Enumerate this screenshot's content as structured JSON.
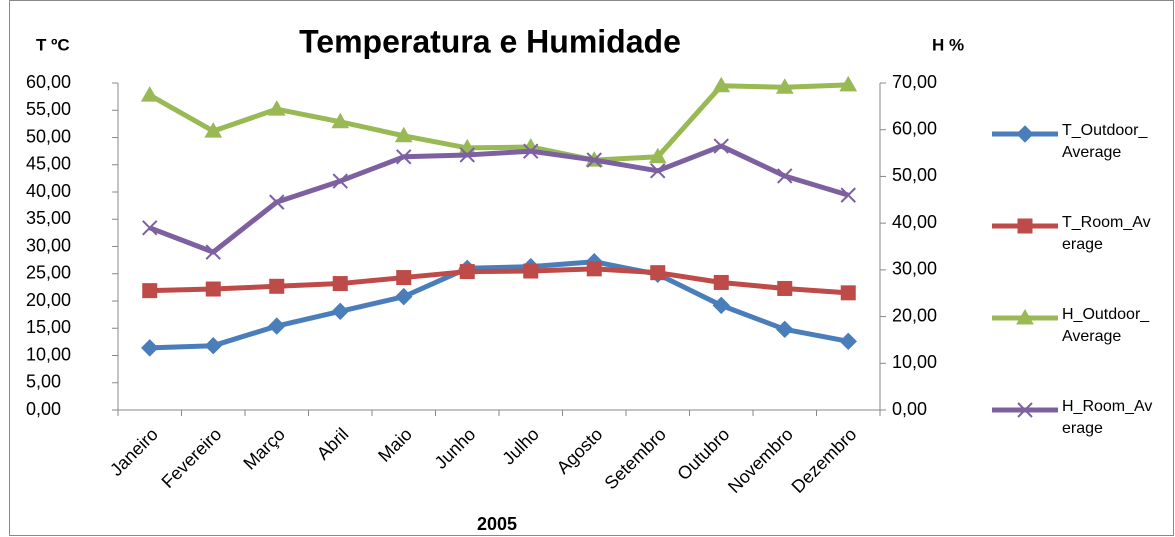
{
  "chart_data": {
    "type": "line",
    "title": "Temperatura e Humidade",
    "ylabel": "T ºC",
    "y2label": "H %",
    "xlabel": "2005",
    "categories": [
      "Janeiro",
      "Fevereiro",
      "Março",
      "Abril",
      "Maio",
      "Junho",
      "Julho",
      "Agosto",
      "Setembro",
      "Outubro",
      "Novembro",
      "Dezembro"
    ],
    "ylim": [
      0,
      60
    ],
    "yticks": [
      {
        "value": 0,
        "label": "0,00"
      },
      {
        "value": 5,
        "label": "5,00"
      },
      {
        "value": 10,
        "label": "10,00"
      },
      {
        "value": 15,
        "label": "15,00"
      },
      {
        "value": 20,
        "label": "20,00"
      },
      {
        "value": 25,
        "label": "25,00"
      },
      {
        "value": 30,
        "label": "30,00"
      },
      {
        "value": 35,
        "label": "35,00"
      },
      {
        "value": 40,
        "label": "40,00"
      },
      {
        "value": 45,
        "label": "45,00"
      },
      {
        "value": 50,
        "label": "50,00"
      },
      {
        "value": 55,
        "label": "55,00"
      },
      {
        "value": 60,
        "label": "60,00"
      }
    ],
    "y2lim": [
      0,
      70
    ],
    "y2ticks": [
      {
        "value": 0,
        "label": "0,00"
      },
      {
        "value": 10,
        "label": "10,00"
      },
      {
        "value": 20,
        "label": "20,00"
      },
      {
        "value": 30,
        "label": "30,00"
      },
      {
        "value": 40,
        "label": "40,00"
      },
      {
        "value": 50,
        "label": "50,00"
      },
      {
        "value": 60,
        "label": "60,00"
      },
      {
        "value": 70,
        "label": "70,00"
      }
    ],
    "legend": "right",
    "series": [
      {
        "name": "T_Outdoor_Average",
        "color": "#4a7ebb",
        "marker": "diamond",
        "values": [
          11.4,
          11.8,
          15.4,
          18.1,
          20.8,
          26.0,
          26.3,
          27.2,
          24.9,
          19.2,
          14.8,
          12.6
        ]
      },
      {
        "name": "T_Room_Average",
        "color": "#be4b48",
        "marker": "square",
        "values": [
          21.9,
          22.2,
          22.7,
          23.2,
          24.3,
          25.4,
          25.5,
          25.9,
          25.2,
          23.4,
          22.3,
          21.5
        ]
      },
      {
        "name": "H_Outdoor_Average",
        "color": "#98b954",
        "marker": "triangle",
        "axis": "y2",
        "values": [
          67.4,
          59.7,
          64.4,
          61.7,
          58.7,
          56.1,
          56.3,
          53.5,
          54.2,
          69.4,
          69.1,
          69.6
        ]
      },
      {
        "name": "H_Room_Average",
        "color": "#7d60a0",
        "marker": "x",
        "axis": "y2",
        "values": [
          39.0,
          33.8,
          44.5,
          49.0,
          54.2,
          54.6,
          55.4,
          53.5,
          51.2,
          56.5,
          50.1,
          46.0
        ]
      }
    ]
  }
}
